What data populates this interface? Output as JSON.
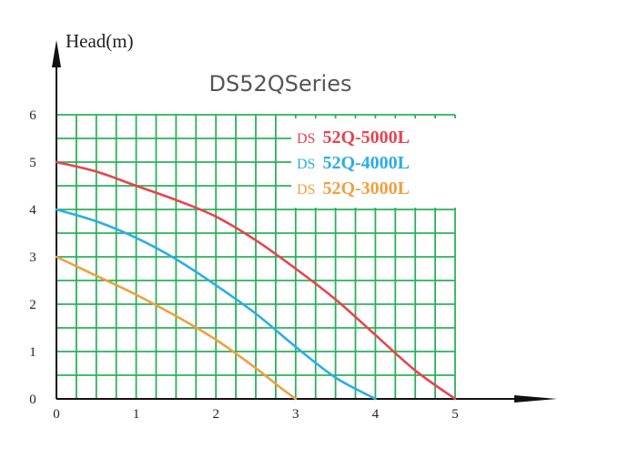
{
  "chart_data": {
    "type": "line",
    "title": "DS52QSeries",
    "ylabel": "Head(m)",
    "xlabel": "",
    "xlim": [
      0,
      5
    ],
    "ylim": [
      0,
      6
    ],
    "x_ticks": [
      "0",
      "1",
      "2",
      "3",
      "4",
      "5"
    ],
    "y_ticks": [
      "0",
      "1",
      "2",
      "3",
      "4",
      "5",
      "6"
    ],
    "grid": true,
    "legend_position": "top-right",
    "series": [
      {
        "name": "DS 52Q-5000L",
        "prefix": "DS",
        "suffix": "52Q-5000L",
        "color": "#e8434f",
        "x": [
          0,
          0.5,
          1,
          1.5,
          2,
          2.5,
          3,
          3.5,
          4,
          4.5,
          5
        ],
        "y": [
          5.0,
          4.8,
          4.5,
          4.2,
          3.85,
          3.35,
          2.75,
          2.1,
          1.35,
          0.6,
          0.0
        ]
      },
      {
        "name": "DS 52Q-4000L",
        "prefix": "DS",
        "suffix": "52Q-4000L",
        "color": "#2aaee6",
        "x": [
          0,
          0.5,
          1,
          1.5,
          2,
          2.5,
          3,
          3.5,
          4
        ],
        "y": [
          4.0,
          3.75,
          3.4,
          2.95,
          2.4,
          1.8,
          1.1,
          0.45,
          0.0
        ]
      },
      {
        "name": "DS 52Q-3000L",
        "prefix": "DS",
        "suffix": "52Q-3000L",
        "color": "#f0a040",
        "x": [
          0,
          0.5,
          1,
          1.5,
          2,
          2.5,
          2.8,
          3
        ],
        "y": [
          3.0,
          2.6,
          2.2,
          1.75,
          1.25,
          0.65,
          0.25,
          0.0
        ]
      }
    ],
    "colors": {
      "grid": "#2ab25a",
      "axis": "#111111",
      "tick_text": "#222222",
      "title": "#555555"
    }
  }
}
